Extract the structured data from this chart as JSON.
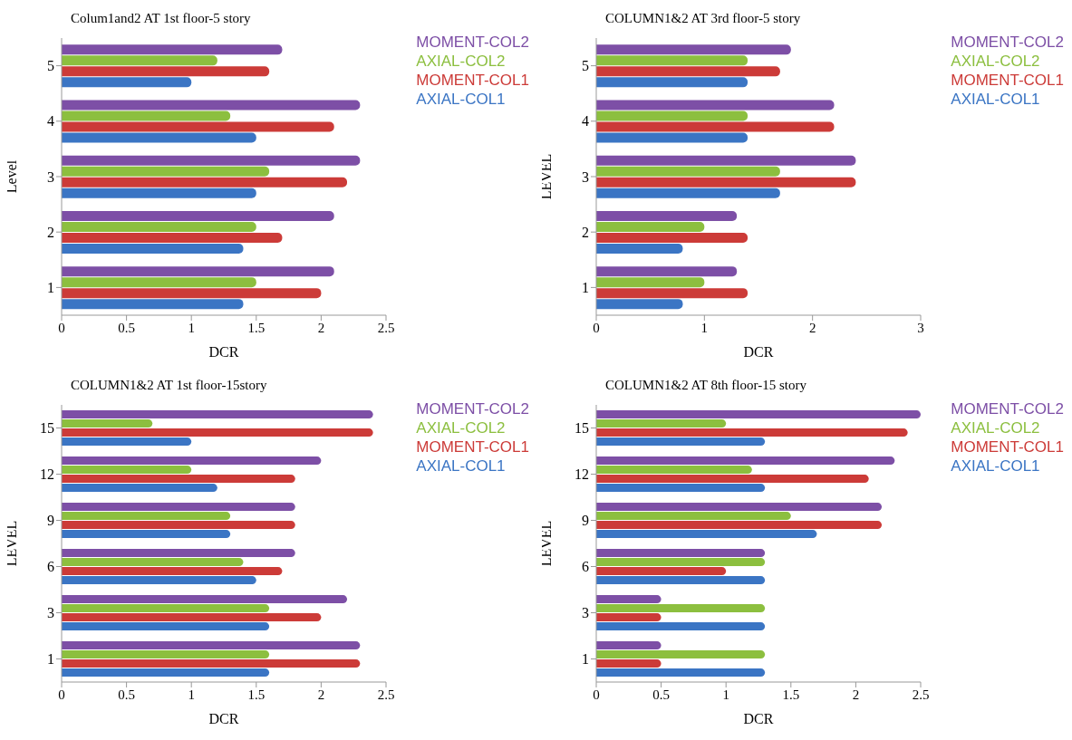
{
  "chart_data": [
    {
      "type": "bar",
      "orientation": "horizontal",
      "title": "Colum1and2 AT 1st floor-5 story",
      "xlabel": "DCR",
      "ylabel": "Level",
      "categories": [
        "5",
        "4",
        "3",
        "2",
        "1"
      ],
      "xlim": [
        0,
        2.5
      ],
      "xticks": [
        0,
        0.5,
        1,
        1.5,
        2,
        2.5
      ],
      "grid": false,
      "legend": "top right",
      "series": [
        {
          "name": "MOMENT-COL2",
          "color": "#7d4fa6",
          "values": [
            1.7,
            2.3,
            2.3,
            2.1,
            2.1
          ]
        },
        {
          "name": "AXIAL-COL2",
          "color": "#8cbf3f",
          "values": [
            1.2,
            1.3,
            1.6,
            1.5,
            1.5
          ]
        },
        {
          "name": "MOMENT-COL1",
          "color": "#cc3b38",
          "values": [
            1.6,
            2.1,
            2.2,
            1.7,
            2.0
          ]
        },
        {
          "name": "AXIAL-COL1",
          "color": "#3b75c4",
          "values": [
            1.0,
            1.5,
            1.5,
            1.4,
            1.4
          ]
        }
      ]
    },
    {
      "type": "bar",
      "orientation": "horizontal",
      "title": "COLUMN1&2 AT 3rd floor-5 story",
      "xlabel": "DCR",
      "ylabel": "LEVEL",
      "categories": [
        "5",
        "4",
        "3",
        "2",
        "1"
      ],
      "xlim": [
        0,
        3
      ],
      "xticks": [
        0,
        1,
        2,
        3
      ],
      "grid": false,
      "legend": "top right",
      "series": [
        {
          "name": "MOMENT-COL2",
          "color": "#7d4fa6",
          "values": [
            1.8,
            2.2,
            2.4,
            1.3,
            1.3
          ]
        },
        {
          "name": "AXIAL-COL2",
          "color": "#8cbf3f",
          "values": [
            1.4,
            1.4,
            1.7,
            1.0,
            1.0
          ]
        },
        {
          "name": "MOMENT-COL1",
          "color": "#cc3b38",
          "values": [
            1.7,
            2.2,
            2.4,
            1.4,
            1.4
          ]
        },
        {
          "name": "AXIAL-COL1",
          "color": "#3b75c4",
          "values": [
            1.4,
            1.4,
            1.7,
            0.8,
            0.8
          ]
        }
      ]
    },
    {
      "type": "bar",
      "orientation": "horizontal",
      "title": "COLUMN1&2 AT 1st floor-15story",
      "xlabel": "DCR",
      "ylabel": "LEVEL",
      "categories": [
        "15",
        "12",
        "9",
        "6",
        "3",
        "1"
      ],
      "xlim": [
        0,
        2.5
      ],
      "xticks": [
        0,
        0.5,
        1,
        1.5,
        2,
        2.5
      ],
      "grid": false,
      "legend": "top right",
      "series": [
        {
          "name": "MOMENT-COL2",
          "color": "#7d4fa6",
          "values": [
            2.4,
            2.0,
            1.8,
            1.8,
            2.2,
            2.3
          ]
        },
        {
          "name": "AXIAL-COL2",
          "color": "#8cbf3f",
          "values": [
            0.7,
            1.0,
            1.3,
            1.4,
            1.6,
            1.6
          ]
        },
        {
          "name": "MOMENT-COL1",
          "color": "#cc3b38",
          "values": [
            2.4,
            1.8,
            1.8,
            1.7,
            2.0,
            2.3
          ]
        },
        {
          "name": "AXIAL-COL1",
          "color": "#3b75c4",
          "values": [
            1.0,
            1.2,
            1.3,
            1.5,
            1.6,
            1.6
          ]
        }
      ]
    },
    {
      "type": "bar",
      "orientation": "horizontal",
      "title": "COLUMN1&2 AT 8th floor-15 story",
      "xlabel": "DCR",
      "ylabel": "LEVEL",
      "categories": [
        "15",
        "12",
        "9",
        "6",
        "3",
        "1"
      ],
      "xlim": [
        0,
        2.5
      ],
      "xticks": [
        0,
        0.5,
        1,
        1.5,
        2,
        2.5
      ],
      "grid": false,
      "legend": "top right",
      "series": [
        {
          "name": "MOMENT-COL2",
          "color": "#7d4fa6",
          "values": [
            2.5,
            2.3,
            2.2,
            1.3,
            0.5,
            0.5
          ]
        },
        {
          "name": "AXIAL-COL2",
          "color": "#8cbf3f",
          "values": [
            1.0,
            1.2,
            1.5,
            1.3,
            1.3,
            1.3
          ]
        },
        {
          "name": "MOMENT-COL1",
          "color": "#cc3b38",
          "values": [
            2.4,
            2.1,
            2.2,
            1.0,
            0.5,
            0.5
          ]
        },
        {
          "name": "AXIAL-COL1",
          "color": "#3b75c4",
          "values": [
            1.3,
            1.3,
            1.7,
            1.3,
            1.3,
            1.3
          ]
        }
      ]
    }
  ]
}
